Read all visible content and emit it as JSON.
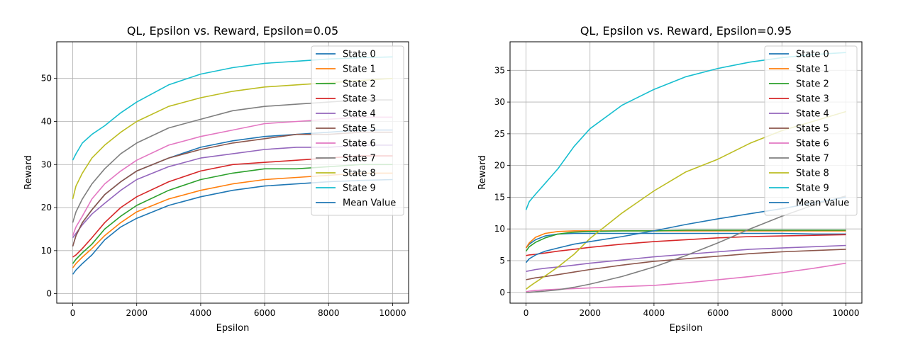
{
  "colors": {
    "tab10": [
      "#1f77b4",
      "#ff7f0e",
      "#2ca02c",
      "#d62728",
      "#9467bd",
      "#8c564b",
      "#e377c2",
      "#7f7f7f",
      "#bcbd22",
      "#17becf"
    ],
    "grid": "#b0b0b0",
    "axes": "#000000"
  },
  "chart_data": [
    {
      "type": "line",
      "title": "QL, Epsilon vs. Reward, Epsilon=0.05",
      "xlabel": "Epsilon",
      "ylabel": "Reward",
      "xlim": [
        -500,
        10500
      ],
      "ylim": [
        -2.2,
        58.5
      ],
      "xticks": [
        0,
        2000,
        4000,
        6000,
        8000,
        10000
      ],
      "yticks": [
        0,
        10,
        20,
        30,
        40,
        50
      ],
      "grid": true,
      "legend_position": "top-right",
      "x": [
        0,
        100,
        300,
        600,
        1000,
        1500,
        2000,
        3000,
        4000,
        5000,
        6000,
        7000,
        8000,
        9000,
        10000
      ],
      "series": [
        {
          "name": "State 0",
          "color": "#1f77b4",
          "values": [
            11.0,
            13.5,
            16.5,
            19.5,
            23.0,
            26.0,
            28.5,
            31.5,
            34.0,
            35.5,
            36.5,
            37.0,
            37.5,
            38.0,
            38.0
          ]
        },
        {
          "name": "State 1",
          "color": "#ff7f0e",
          "values": [
            6.0,
            7.0,
            8.5,
            10.5,
            13.5,
            16.5,
            19.0,
            22.0,
            24.0,
            25.5,
            26.5,
            27.0,
            27.5,
            28.0,
            28.0
          ]
        },
        {
          "name": "State 2",
          "color": "#2ca02c",
          "values": [
            7.0,
            8.0,
            9.5,
            11.5,
            15.0,
            18.0,
            20.5,
            24.0,
            26.5,
            28.0,
            29.0,
            29.0,
            29.5,
            30.0,
            30.0
          ]
        },
        {
          "name": "State 3",
          "color": "#d62728",
          "values": [
            8.5,
            9.0,
            10.5,
            13.0,
            16.5,
            20.0,
            22.5,
            26.0,
            28.5,
            30.0,
            30.5,
            31.0,
            31.5,
            32.0,
            32.0
          ]
        },
        {
          "name": "State 4",
          "color": "#9467bd",
          "values": [
            13.0,
            14.0,
            16.0,
            18.5,
            21.0,
            24.0,
            26.5,
            29.5,
            31.5,
            32.5,
            33.5,
            34.0,
            34.0,
            34.5,
            34.5
          ]
        },
        {
          "name": "State 5",
          "color": "#8c564b",
          "values": [
            11.0,
            13.5,
            16.5,
            19.5,
            23.0,
            26.0,
            28.5,
            31.5,
            33.5,
            35.0,
            36.0,
            37.0,
            37.0,
            37.5,
            37.5
          ]
        },
        {
          "name": "State 6",
          "color": "#e377c2",
          "values": [
            13.5,
            15.5,
            18.0,
            22.0,
            25.5,
            28.5,
            31.0,
            34.5,
            36.5,
            38.0,
            39.5,
            40.0,
            40.5,
            41.0,
            41.0
          ]
        },
        {
          "name": "State 7",
          "color": "#7f7f7f",
          "values": [
            16.5,
            19.0,
            22.0,
            25.5,
            29.0,
            32.5,
            35.0,
            38.5,
            40.5,
            42.5,
            43.5,
            44.0,
            44.5,
            45.0,
            45.0
          ]
        },
        {
          "name": "State 8",
          "color": "#bcbd22",
          "values": [
            22.0,
            25.0,
            28.0,
            31.5,
            34.5,
            37.5,
            40.0,
            43.5,
            45.5,
            47.0,
            48.0,
            48.5,
            49.0,
            49.5,
            50.0
          ]
        },
        {
          "name": "State 9",
          "color": "#17becf",
          "values": [
            31.0,
            32.5,
            35.0,
            37.0,
            39.0,
            42.0,
            44.5,
            48.5,
            51.0,
            52.5,
            53.5,
            54.0,
            54.5,
            54.8,
            55.0
          ]
        },
        {
          "name": "Mean Value",
          "color": "#1f77b4",
          "values": [
            4.5,
            5.5,
            7.0,
            9.0,
            12.5,
            15.5,
            17.5,
            20.5,
            22.5,
            24.0,
            25.0,
            25.5,
            26.0,
            26.3,
            26.5
          ]
        }
      ]
    },
    {
      "type": "line",
      "title": "QL, Epsilon vs. Reward, Epsilon=0.95",
      "xlabel": "Epsilon",
      "ylabel": "Reward",
      "xlim": [
        -500,
        10500
      ],
      "ylim": [
        -1.7,
        39.5
      ],
      "xticks": [
        0,
        2000,
        4000,
        6000,
        8000,
        10000
      ],
      "yticks": [
        0,
        5,
        10,
        15,
        20,
        25,
        30,
        35
      ],
      "grid": true,
      "legend_position": "top-right",
      "x": [
        0,
        100,
        300,
        600,
        1000,
        1500,
        2000,
        3000,
        4000,
        5000,
        6000,
        7000,
        8000,
        9000,
        10000
      ],
      "series": [
        {
          "name": "State 0",
          "color": "#1f77b4",
          "values": [
            7.0,
            7.6,
            8.3,
            8.9,
            9.2,
            9.3,
            9.3,
            9.3,
            9.3,
            9.3,
            9.3,
            9.3,
            9.3,
            9.2,
            9.2
          ]
        },
        {
          "name": "State 1",
          "color": "#ff7f0e",
          "values": [
            7.0,
            7.8,
            8.7,
            9.3,
            9.6,
            9.7,
            9.7,
            9.7,
            9.7,
            9.7,
            9.7,
            9.7,
            9.7,
            9.7,
            9.7
          ]
        },
        {
          "name": "State 2",
          "color": "#2ca02c",
          "values": [
            6.5,
            7.2,
            7.9,
            8.6,
            9.2,
            9.5,
            9.6,
            9.7,
            9.7,
            9.8,
            9.8,
            9.8,
            9.8,
            9.8,
            9.8
          ]
        },
        {
          "name": "State 3",
          "color": "#d62728",
          "values": [
            5.8,
            5.9,
            6.0,
            6.2,
            6.5,
            6.8,
            7.1,
            7.6,
            8.0,
            8.3,
            8.6,
            8.8,
            8.9,
            9.0,
            9.1
          ]
        },
        {
          "name": "State 4",
          "color": "#9467bd",
          "values": [
            3.3,
            3.4,
            3.6,
            3.8,
            4.0,
            4.3,
            4.6,
            5.1,
            5.6,
            6.0,
            6.4,
            6.8,
            7.0,
            7.2,
            7.4
          ]
        },
        {
          "name": "State 5",
          "color": "#8c564b",
          "values": [
            2.0,
            2.1,
            2.3,
            2.5,
            2.8,
            3.2,
            3.6,
            4.3,
            4.9,
            5.3,
            5.7,
            6.1,
            6.4,
            6.6,
            6.8
          ]
        },
        {
          "name": "State 6",
          "color": "#e377c2",
          "values": [
            0.1,
            0.2,
            0.3,
            0.4,
            0.5,
            0.6,
            0.7,
            0.9,
            1.1,
            1.5,
            2.0,
            2.5,
            3.1,
            3.8,
            4.6
          ]
        },
        {
          "name": "State 7",
          "color": "#7f7f7f",
          "values": [
            0.0,
            0.0,
            0.1,
            0.2,
            0.4,
            0.8,
            1.3,
            2.5,
            4.0,
            5.8,
            7.8,
            10.0,
            12.0,
            13.8,
            15.2
          ]
        },
        {
          "name": "State 8",
          "color": "#bcbd22",
          "values": [
            0.5,
            0.9,
            1.6,
            2.6,
            4.0,
            6.0,
            8.5,
            12.5,
            16.0,
            19.0,
            21.0,
            23.5,
            25.5,
            27.0,
            28.5
          ]
        },
        {
          "name": "State 9",
          "color": "#17becf",
          "values": [
            13.0,
            14.3,
            15.5,
            17.2,
            19.5,
            23.0,
            25.8,
            29.5,
            32.0,
            34.0,
            35.3,
            36.3,
            37.0,
            37.5,
            37.8
          ]
        },
        {
          "name": "Mean Value",
          "color": "#1f77b4",
          "values": [
            4.7,
            5.3,
            5.9,
            6.5,
            7.0,
            7.6,
            8.0,
            8.8,
            9.7,
            10.7,
            11.6,
            12.4,
            13.2,
            14.1,
            15.0
          ]
        }
      ]
    }
  ]
}
